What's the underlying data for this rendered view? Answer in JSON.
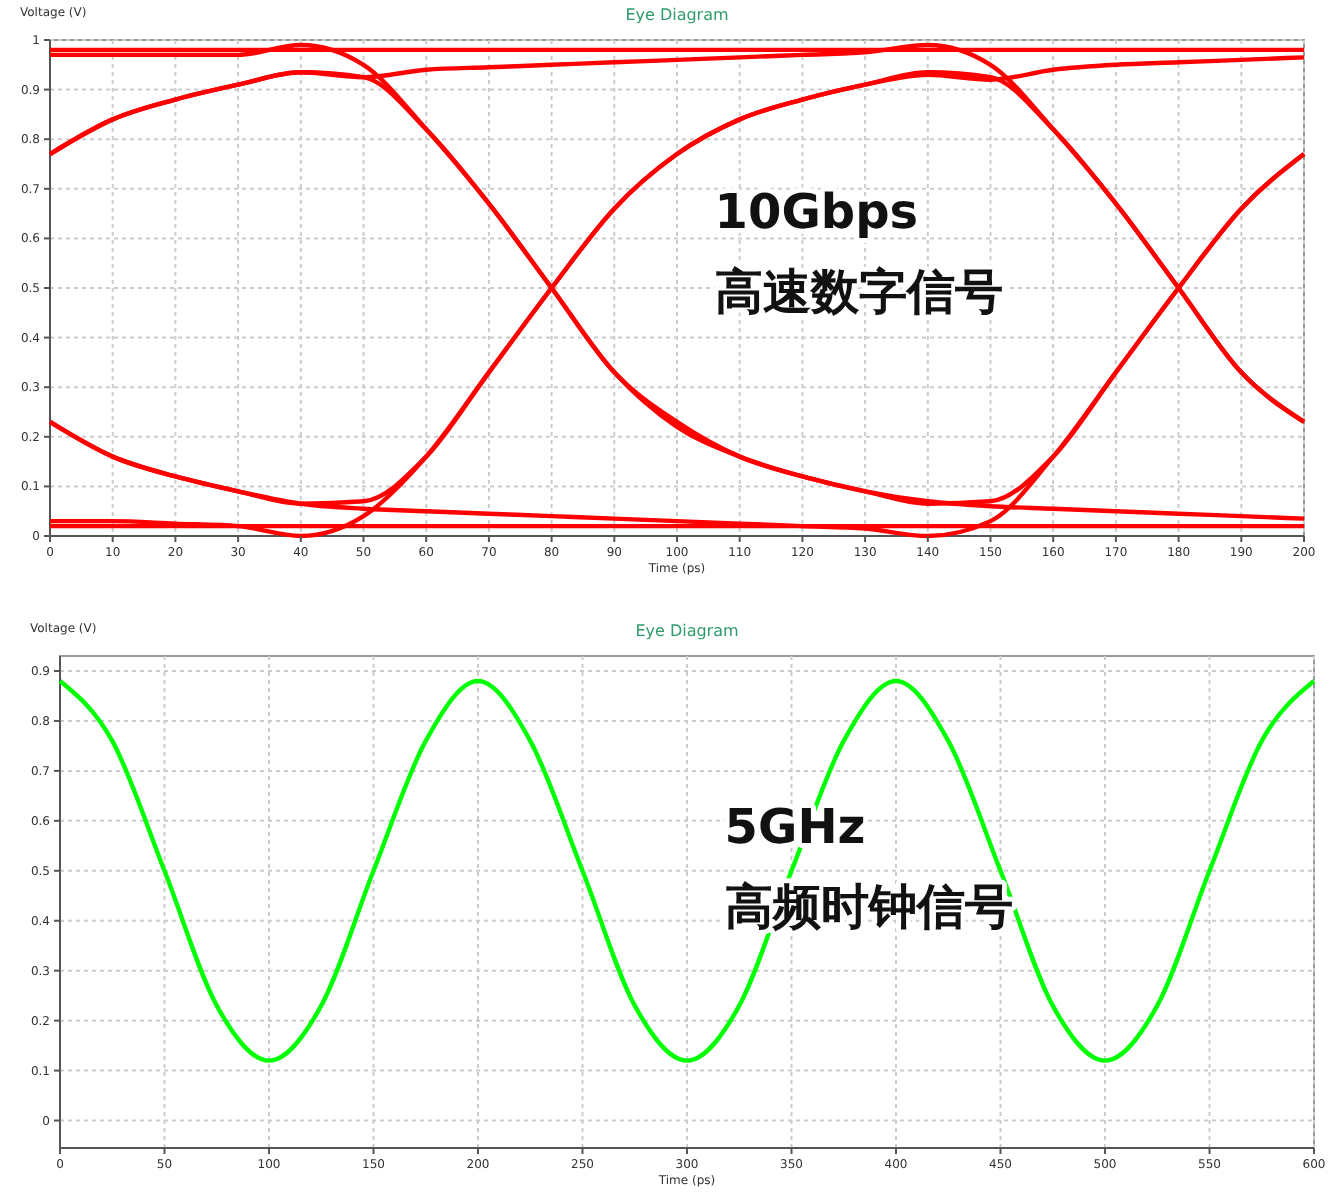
{
  "chart_data": [
    {
      "type": "line",
      "title": "Eye Diagram",
      "xlabel": "Time (ps)",
      "ylabel": "Voltage (V)",
      "annotations": [
        "10Gbps",
        "高速数字信号"
      ],
      "x": [
        0,
        10,
        20,
        30,
        40,
        50,
        60,
        70,
        80,
        90,
        100,
        110,
        120,
        130,
        140,
        150,
        160,
        170,
        180,
        190,
        200
      ],
      "xlim": [
        0,
        200
      ],
      "xticks": [
        0,
        10,
        20,
        30,
        40,
        50,
        60,
        70,
        80,
        90,
        100,
        110,
        120,
        130,
        140,
        150,
        160,
        170,
        180,
        190,
        200
      ],
      "ylim": [
        0,
        1
      ],
      "yticks": [
        0,
        0.1,
        0.2,
        0.3,
        0.4,
        0.5,
        0.6,
        0.7,
        0.8,
        0.9,
        1
      ],
      "grid": true,
      "series": [
        {
          "color": "#ff0000",
          "values": [
            0.77,
            0.84,
            0.88,
            0.91,
            0.935,
            0.925,
            0.82,
            0.67,
            0.5,
            0.33,
            0.23,
            0.16,
            0.12,
            0.09,
            0.065,
            0.07,
            0.16,
            0.33,
            0.5,
            0.66,
            0.77
          ]
        },
        {
          "color": "#ff0000",
          "values": [
            0.23,
            0.16,
            0.12,
            0.09,
            0.065,
            0.07,
            0.16,
            0.33,
            0.5,
            0.66,
            0.77,
            0.84,
            0.88,
            0.91,
            0.935,
            0.925,
            0.82,
            0.67,
            0.5,
            0.33,
            0.23
          ]
        },
        {
          "color": "#ff0000",
          "values": [
            0.97,
            0.97,
            0.97,
            0.97,
            0.99,
            0.95,
            0.82,
            0.67,
            0.5,
            0.33,
            0.22,
            0.16,
            0.12,
            0.09,
            0.07,
            0.06,
            0.055,
            0.05,
            0.045,
            0.04,
            0.035
          ]
        },
        {
          "color": "#ff0000",
          "values": [
            0.03,
            0.03,
            0.025,
            0.02,
            0,
            0.04,
            0.16,
            0.33,
            0.5,
            0.66,
            0.77,
            0.84,
            0.88,
            0.91,
            0.93,
            0.92,
            0.94,
            0.95,
            0.955,
            0.96,
            0.965
          ]
        },
        {
          "color": "#ff0000",
          "values": [
            0.77,
            0.84,
            0.88,
            0.91,
            0.935,
            0.925,
            0.94,
            0.945,
            0.95,
            0.955,
            0.96,
            0.965,
            0.97,
            0.975,
            0.99,
            0.95,
            0.82,
            0.67,
            0.5,
            0.33,
            0.23
          ]
        },
        {
          "color": "#ff0000",
          "values": [
            0.23,
            0.16,
            0.12,
            0.09,
            0.065,
            0.055,
            0.05,
            0.045,
            0.04,
            0.035,
            0.03,
            0.025,
            0.02,
            0.015,
            0,
            0.03,
            0.16,
            0.33,
            0.5,
            0.66,
            0.77
          ]
        },
        {
          "color": "#ff0000",
          "values": [
            0.98,
            0.98,
            0.98,
            0.98,
            0.98,
            0.98,
            0.98,
            0.98,
            0.98,
            0.98,
            0.98,
            0.98,
            0.98,
            0.98,
            0.98,
            0.98,
            0.98,
            0.98,
            0.98,
            0.98,
            0.98
          ]
        },
        {
          "color": "#ff0000",
          "values": [
            0.02,
            0.02,
            0.02,
            0.02,
            0.02,
            0.02,
            0.02,
            0.02,
            0.02,
            0.02,
            0.02,
            0.02,
            0.02,
            0.02,
            0.02,
            0.02,
            0.02,
            0.02,
            0.02,
            0.02,
            0.02
          ]
        }
      ]
    },
    {
      "type": "line",
      "title": "Eye Diagram",
      "xlabel": "Time (ps)",
      "ylabel": "Voltage (V)",
      "annotations": [
        "5GHz",
        "高频时钟信号"
      ],
      "x": [
        0,
        25,
        50,
        75,
        100,
        125,
        150,
        175,
        200,
        225,
        250,
        275,
        300,
        325,
        350,
        375,
        400,
        425,
        450,
        475,
        500,
        525,
        550,
        575,
        600
      ],
      "xlim": [
        0,
        600
      ],
      "xticks": [
        0,
        50,
        100,
        150,
        200,
        250,
        300,
        350,
        400,
        450,
        500,
        550,
        600
      ],
      "ylim": [
        -0.055,
        0.93
      ],
      "yticks": [
        0,
        0.1,
        0.2,
        0.3,
        0.4,
        0.5,
        0.6,
        0.7,
        0.8,
        0.9
      ],
      "grid": true,
      "series": [
        {
          "color": "#00ff00",
          "values": [
            0.88,
            0.76,
            0.5,
            0.23,
            0.12,
            0.23,
            0.5,
            0.76,
            0.88,
            0.76,
            0.5,
            0.23,
            0.12,
            0.23,
            0.5,
            0.76,
            0.88,
            0.76,
            0.5,
            0.23,
            0.12,
            0.23,
            0.5,
            0.76,
            0.88
          ]
        }
      ]
    }
  ]
}
